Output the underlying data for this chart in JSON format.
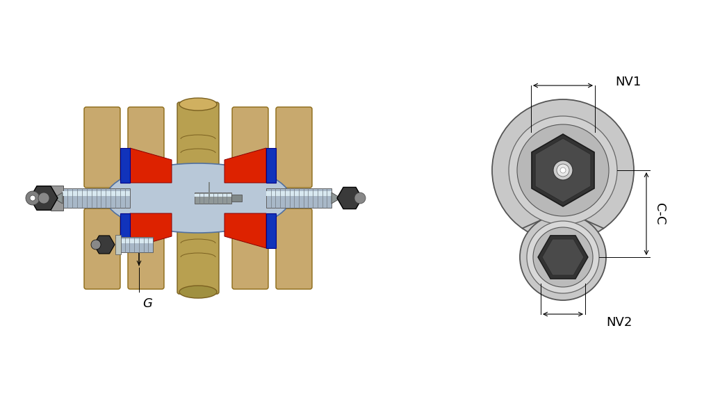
{
  "background_color": "#ffffff",
  "wood_color": "#C8A96E",
  "wood_dark": "#8B6914",
  "wood_center_color": "#C8A055",
  "body_color": "#B8C8D8",
  "body_edge": "#5070A0",
  "red_color": "#DD2200",
  "blue_color": "#1133BB",
  "dark_gray": "#404040",
  "mid_gray": "#888888",
  "silver": "#A8B8C8",
  "silver_bright": "#D0DCE8",
  "wrench_body": "#C8C8C8",
  "wrench_inner": "#B0B0B0",
  "nut_dark": "#333333",
  "nut_mid": "#555555",
  "nut_ring": "#888888",
  "dim_color": "#000000",
  "text_color": "#000000",
  "nv1_label": "NV1",
  "nv2_label": "NV2",
  "cc_label": "C-C",
  "g_label": "G",
  "label_fontsize": 13
}
